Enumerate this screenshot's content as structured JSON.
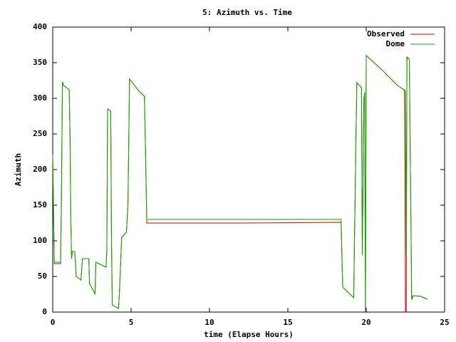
{
  "chart_data": {
    "type": "line",
    "title": "5: Azimuth vs. Time",
    "x_label": "time (Elapse Hours)",
    "y_label": "Azimuth",
    "x": [
      0,
      0.05,
      0.1,
      0.5,
      0.55,
      0.62,
      0.7,
      1.05,
      1.1,
      1.15,
      1.2,
      1.25,
      1.4,
      1.45,
      1.5,
      1.8,
      1.9,
      2.3,
      2.35,
      2.6,
      2.7,
      2.75,
      3.4,
      3.45,
      3.5,
      3.7,
      3.75,
      3.8,
      4.2,
      4.25,
      4.4,
      4.7,
      4.8,
      4.9,
      5.5,
      5.85,
      5.9,
      6.0,
      12,
      18.4,
      18.45,
      18.5,
      19.2,
      19.25,
      19.4,
      19.7,
      19.75,
      19.85,
      19.9,
      19.95,
      20.0,
      21.0,
      22.0,
      22.4,
      22.45,
      22.5,
      22.55,
      22.6,
      22.75,
      22.9,
      23.0,
      23.5,
      23.9
    ],
    "series": [
      {
        "name": "Observed",
        "color": "#cc0000",
        "values": [
          220,
          145,
          68,
          68,
          145,
          323,
          318,
          312,
          255,
          140,
          75,
          85,
          85,
          70,
          50,
          45,
          75,
          75,
          40,
          30,
          25,
          70,
          63,
          85,
          285,
          282,
          100,
          10,
          5,
          25,
          105,
          112,
          150,
          327,
          310,
          303,
          250,
          125,
          125,
          126,
          75,
          35,
          20,
          100,
          322,
          315,
          80,
          300,
          308,
          0,
          360,
          340,
          318,
          312,
          310,
          0,
          0,
          358,
          355,
          20,
          23,
          22,
          18
        ]
      },
      {
        "name": "Dome",
        "color": "#00aa00",
        "values": [
          220,
          145,
          70,
          70,
          145,
          323,
          318,
          312,
          255,
          140,
          75,
          85,
          85,
          70,
          50,
          45,
          75,
          75,
          40,
          30,
          25,
          70,
          63,
          85,
          285,
          282,
          100,
          10,
          5,
          25,
          105,
          112,
          150,
          327,
          310,
          303,
          250,
          130,
          130,
          130,
          80,
          35,
          20,
          100,
          322,
          315,
          80,
          300,
          308,
          0,
          360,
          340,
          318,
          312,
          312,
          310,
          80,
          357,
          355,
          17,
          23,
          22,
          18
        ]
      }
    ],
    "xlim": [
      0,
      25
    ],
    "xticks": [
      0,
      5,
      10,
      15,
      20,
      25
    ],
    "ylim": [
      0,
      400
    ],
    "yticks": [
      0,
      50,
      100,
      150,
      200,
      250,
      300,
      350,
      400
    ],
    "legend": "top-right"
  }
}
